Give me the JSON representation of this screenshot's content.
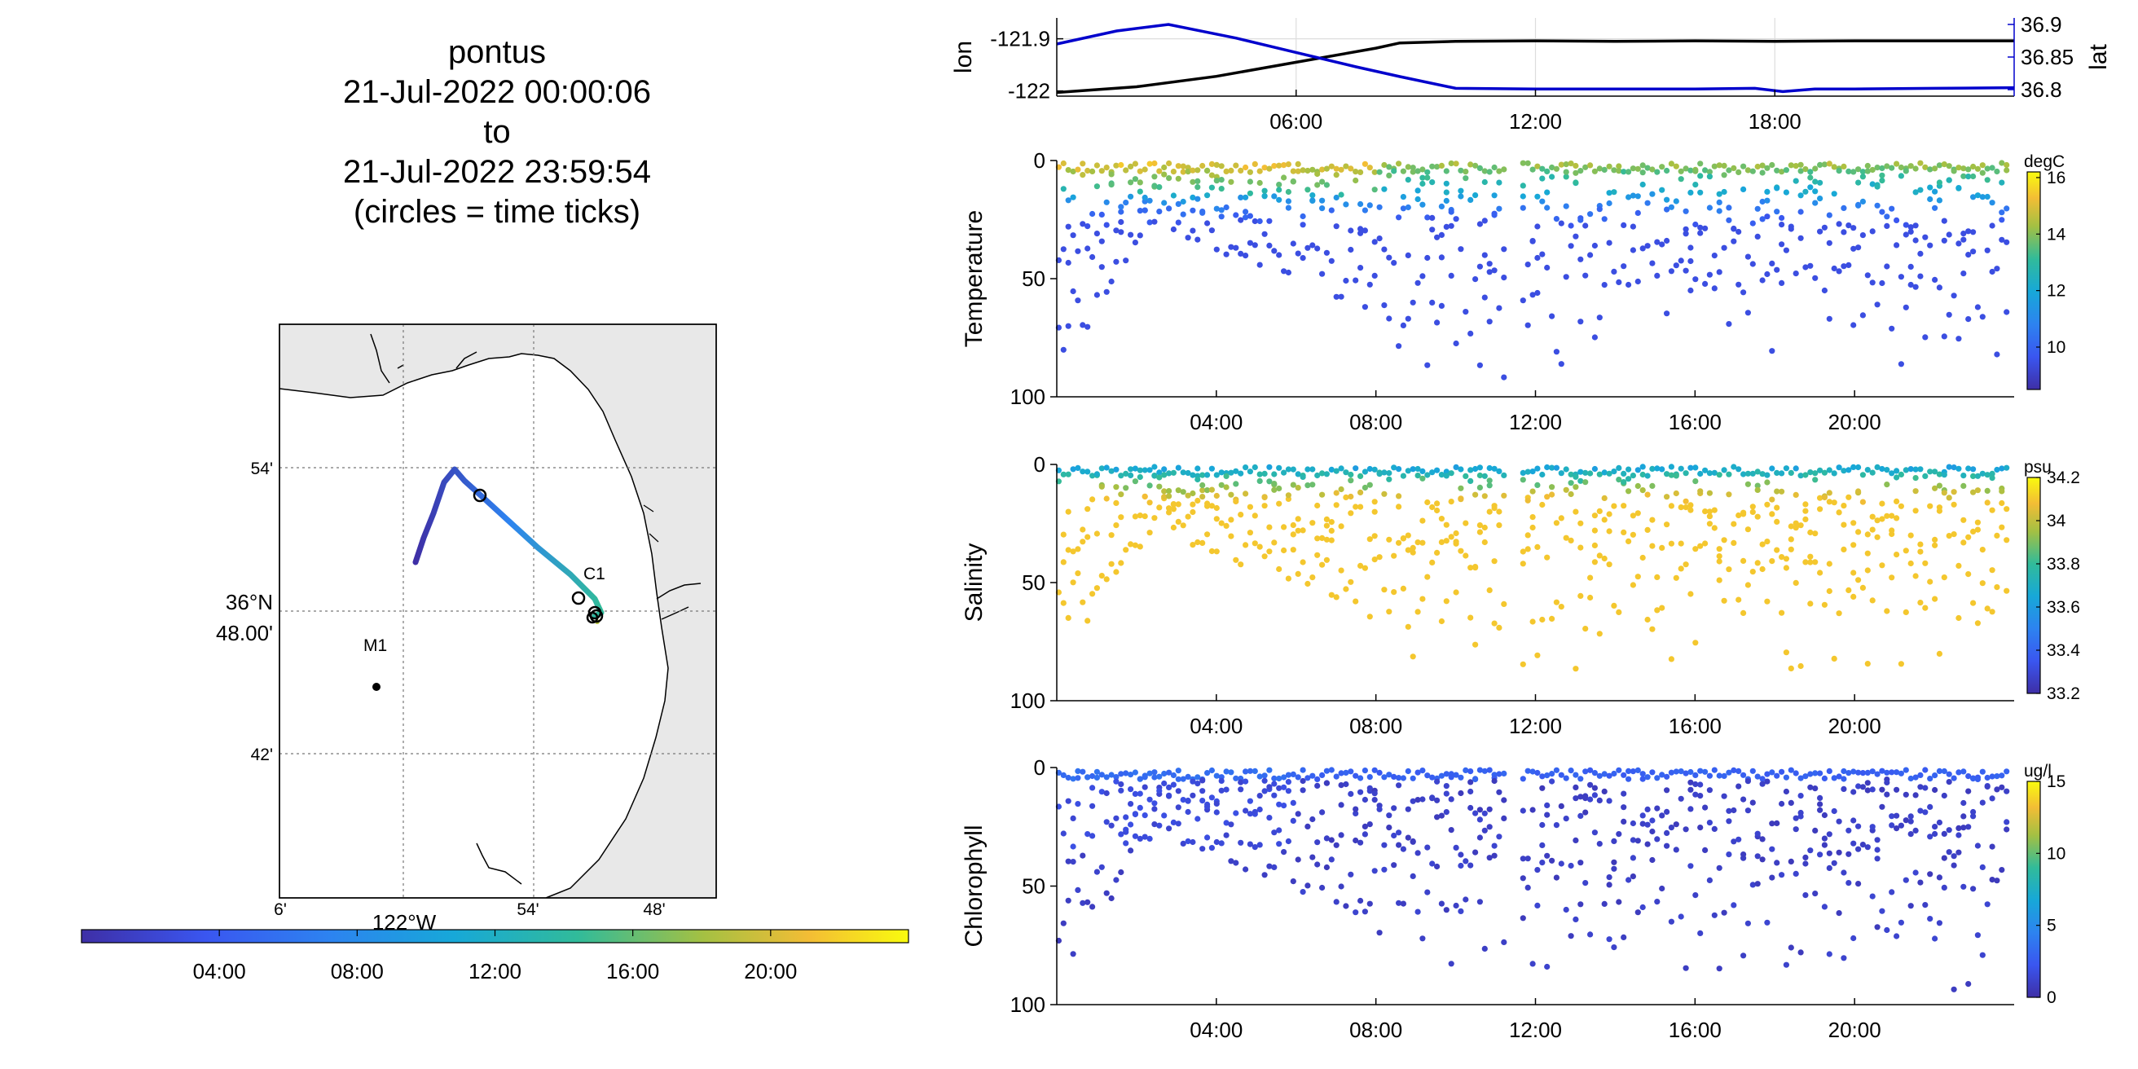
{
  "header": {
    "platform": "pontus",
    "start": "21-Jul-2022 00:00:06",
    "to": "to",
    "end": "21-Jul-2022 23:59:54",
    "note": "(circles = time ticks)"
  },
  "colors": {
    "lon_line": "#000000",
    "lat_line": "#0000cc",
    "land": "#e8e8e8",
    "track_start": "#3e2fa6",
    "track_end": "#d8cc2a"
  },
  "map": {
    "lon_ticks": [
      "6'",
      "54'",
      "48'"
    ],
    "lat_ticks": [
      "54'",
      "42'"
    ],
    "lat_center_label_1": "36°N",
    "lat_center_label_2": "48.00'",
    "lon_center_label": "122°W",
    "stations": [
      {
        "name": "M1"
      },
      {
        "name": "C1"
      }
    ]
  },
  "time_colorbar": {
    "ticks": [
      "04:00",
      "08:00",
      "12:00",
      "16:00",
      "20:00"
    ]
  },
  "chart_data": [
    {
      "type": "line",
      "id": "lonlat",
      "ylabel": "lon",
      "ylabel_right": "lat",
      "x_ticks": [
        "06:00",
        "12:00",
        "18:00"
      ],
      "x_tick_hours": [
        6,
        12,
        18
      ],
      "xlim_hours": [
        0,
        24
      ],
      "ylim_left": [
        -122.01,
        -121.86
      ],
      "ylim_right": [
        36.79,
        36.91
      ],
      "y_ticks_left": [
        "-121.9",
        "-122"
      ],
      "y_ticks_left_values": [
        -121.9,
        -122.0
      ],
      "y_ticks_right": [
        "36.9",
        "36.85",
        "36.8"
      ],
      "y_ticks_right_values": [
        36.9,
        36.85,
        36.8
      ],
      "grid": true,
      "series": [
        {
          "axis": "left",
          "hours": [
            0,
            2,
            4,
            6,
            8,
            8.6,
            10,
            12,
            14,
            16,
            18,
            20,
            22,
            24
          ],
          "values": [
            -122.003,
            -121.992,
            -121.972,
            -121.945,
            -121.918,
            -121.908,
            -121.905,
            -121.904,
            -121.905,
            -121.904,
            -121.905,
            -121.904,
            -121.904,
            -121.904
          ]
        },
        {
          "axis": "right",
          "hours": [
            0,
            1.5,
            2.8,
            4.5,
            6,
            7.5,
            8.6,
            10,
            12,
            14,
            16,
            17.5,
            18.2,
            19,
            20,
            22,
            24
          ],
          "values": [
            36.87,
            36.89,
            36.9,
            36.879,
            36.857,
            36.835,
            36.82,
            36.802,
            36.801,
            36.801,
            36.801,
            36.802,
            36.797,
            36.801,
            36.801,
            36.802,
            36.803
          ]
        }
      ]
    },
    {
      "type": "scatter",
      "id": "temperature",
      "ylabel": "Temperature",
      "units": "degC",
      "ylim": [
        0,
        100
      ],
      "y_ticks": [
        0,
        50,
        100
      ],
      "x_ticks": [
        "04:00",
        "08:00",
        "12:00",
        "16:00",
        "20:00"
      ],
      "x_tick_hours": [
        4,
        8,
        12,
        16,
        20
      ],
      "xlim_hours": [
        0,
        24
      ],
      "colorbar_ticks": [
        10,
        12,
        14,
        16
      ],
      "clim": [
        8.5,
        16.2
      ]
    },
    {
      "type": "scatter",
      "id": "salinity",
      "ylabel": "Salinity",
      "units": "psu",
      "ylim": [
        0,
        100
      ],
      "y_ticks": [
        0,
        50,
        100
      ],
      "x_ticks": [
        "04:00",
        "08:00",
        "12:00",
        "16:00",
        "20:00"
      ],
      "x_tick_hours": [
        4,
        8,
        12,
        16,
        20
      ],
      "xlim_hours": [
        0,
        24
      ],
      "colorbar_ticks": [
        "33.2",
        "33.4",
        "33.6",
        "33.8",
        "34",
        "34.2"
      ],
      "clim": [
        33.2,
        34.2
      ]
    },
    {
      "type": "scatter",
      "id": "chlorophyll",
      "ylabel": "Chlorophyll",
      "units": "ug/l",
      "ylim": [
        0,
        100
      ],
      "y_ticks": [
        0,
        50,
        100
      ],
      "x_ticks": [
        "04:00",
        "08:00",
        "12:00",
        "16:00",
        "20:00"
      ],
      "x_tick_hours": [
        4,
        8,
        12,
        16,
        20
      ],
      "xlim_hours": [
        0,
        24
      ],
      "colorbar_ticks": [
        0,
        5,
        10,
        15
      ],
      "clim": [
        0,
        15
      ]
    }
  ]
}
